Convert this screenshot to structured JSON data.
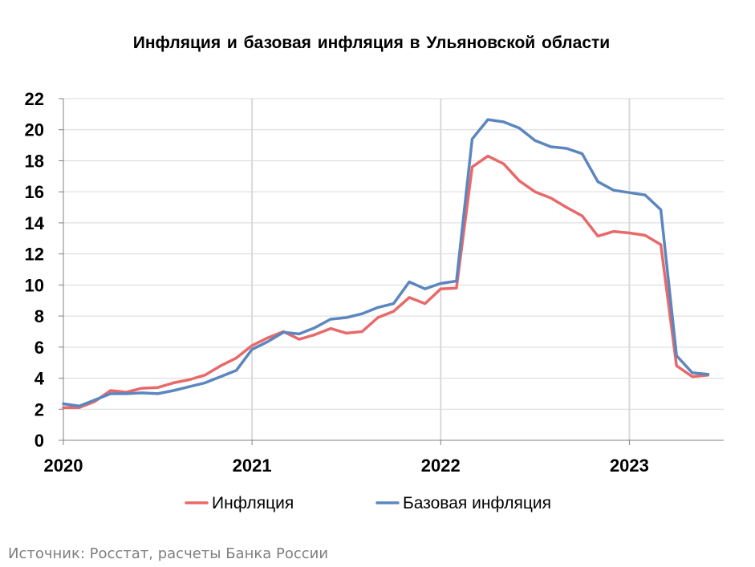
{
  "chart_data": {
    "type": "line",
    "title": "Инфляция и базовая инфляция в Ульяновской области",
    "xlabel": "",
    "ylabel": "",
    "x": [
      "2020-01",
      "2020-02",
      "2020-03",
      "2020-04",
      "2020-05",
      "2020-06",
      "2020-07",
      "2020-08",
      "2020-09",
      "2020-10",
      "2020-11",
      "2020-12",
      "2021-01",
      "2021-02",
      "2021-03",
      "2021-04",
      "2021-05",
      "2021-06",
      "2021-07",
      "2021-08",
      "2021-09",
      "2021-10",
      "2021-11",
      "2021-12",
      "2022-01",
      "2022-02",
      "2022-03",
      "2022-04",
      "2022-05",
      "2022-06",
      "2022-07",
      "2022-08",
      "2022-09",
      "2022-10",
      "2022-11",
      "2022-12",
      "2023-01",
      "2023-02",
      "2023-03",
      "2023-04",
      "2023-05",
      "2023-06"
    ],
    "xlim": [
      "2020-01",
      "2023-07"
    ],
    "xticks": [
      "2020",
      "2021",
      "2022",
      "2023"
    ],
    "ylim": [
      0,
      22
    ],
    "yticks": [
      0,
      2,
      4,
      6,
      8,
      10,
      12,
      14,
      16,
      18,
      20,
      22
    ],
    "grid": true,
    "legend_position": "bottom",
    "series": [
      {
        "name": "Инфляция",
        "color": "#e8696a",
        "values": [
          2.1,
          2.1,
          2.5,
          3.2,
          3.1,
          3.35,
          3.4,
          3.7,
          3.9,
          4.2,
          4.8,
          5.3,
          6.1,
          6.6,
          7.0,
          6.5,
          6.8,
          7.2,
          6.9,
          7.0,
          7.9,
          8.3,
          9.2,
          8.8,
          9.75,
          9.8,
          17.6,
          18.3,
          17.8,
          16.7,
          16.0,
          15.6,
          15.0,
          14.45,
          13.15,
          13.45,
          13.35,
          13.2,
          12.6,
          4.8,
          4.1,
          4.2
        ]
      },
      {
        "name": "Базовая инфляция",
        "color": "#5b86be",
        "values": [
          2.35,
          2.2,
          2.6,
          3.0,
          3.0,
          3.05,
          3.0,
          3.2,
          3.45,
          3.7,
          4.1,
          4.5,
          5.85,
          6.35,
          6.95,
          6.85,
          7.25,
          7.8,
          7.9,
          8.15,
          8.55,
          8.8,
          10.2,
          9.75,
          10.1,
          10.25,
          19.4,
          20.65,
          20.5,
          20.1,
          19.3,
          18.9,
          18.8,
          18.45,
          16.65,
          16.1,
          15.95,
          15.8,
          14.85,
          5.45,
          4.35,
          4.25
        ]
      }
    ]
  },
  "source": "Источник: Росстат, расчеты Банка России"
}
